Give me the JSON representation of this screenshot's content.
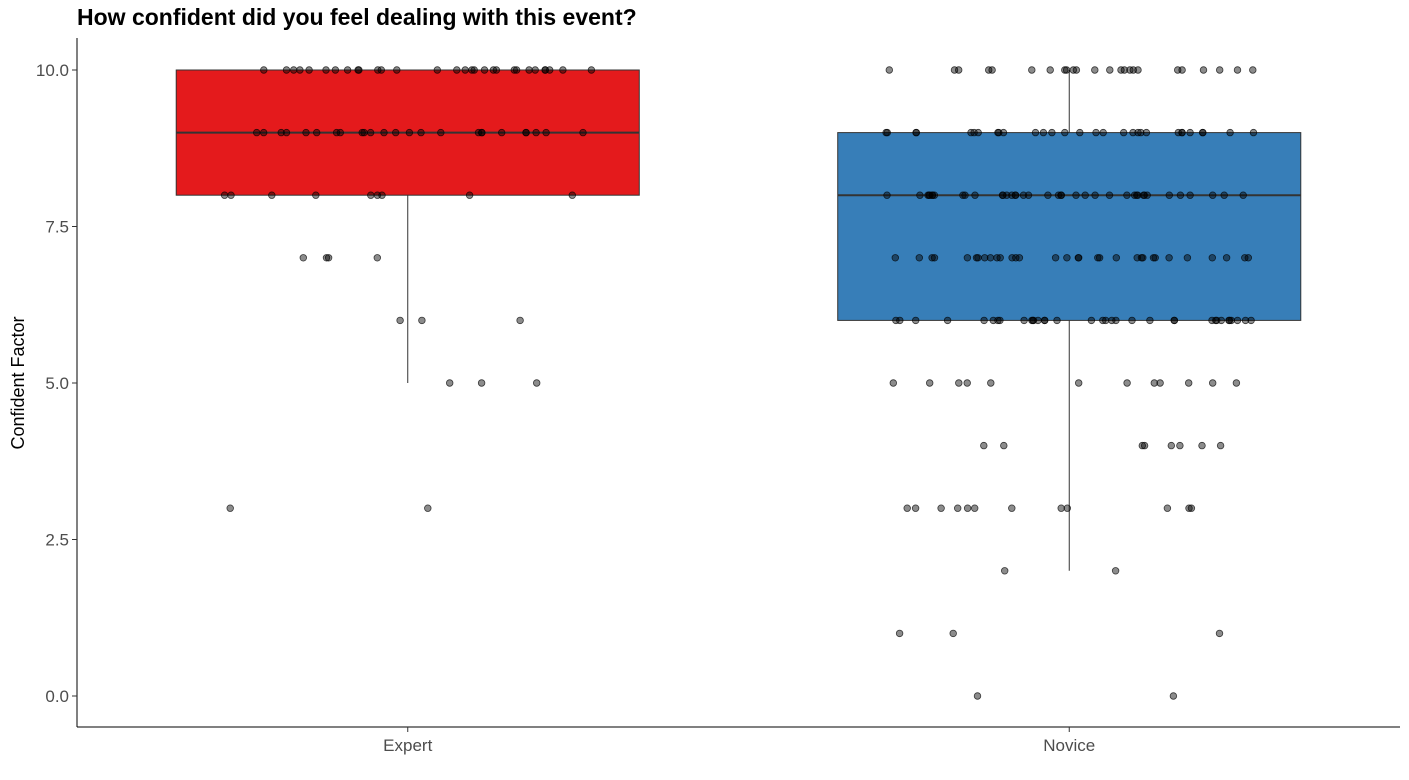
{
  "chart_data": {
    "type": "box",
    "title": "How confident did you feel dealing with this event?",
    "xlabel": "",
    "ylabel": "Confident Factor",
    "ylim": [
      -0.5,
      10.5
    ],
    "yticks": [
      0,
      2.5,
      5,
      7.5,
      10
    ],
    "ytick_labels": [
      "0.0",
      "2.5",
      "5.0",
      "7.5",
      "10.0"
    ],
    "categories": [
      "Expert",
      "Novice"
    ],
    "grid": false,
    "legend": "none",
    "point_color": "#000000",
    "boxes": [
      {
        "name": "Expert",
        "color": "#E41A1C",
        "whisker_low": 5,
        "q1": 8,
        "median": 9,
        "q3": 10,
        "whisker_high": 10,
        "points": [
          {
            "y": 10,
            "n": 30
          },
          {
            "y": 9,
            "n": 25
          },
          {
            "y": 8,
            "n": 9
          },
          {
            "y": 7,
            "n": 4
          },
          {
            "y": 6,
            "n": 3
          },
          {
            "y": 5,
            "n": 3
          },
          {
            "y": 3,
            "n": 2
          }
        ]
      },
      {
        "name": "Novice",
        "color": "#377EB8",
        "whisker_low": 2,
        "q1": 6,
        "median": 8,
        "q3": 9,
        "whisker_high": 10,
        "points": [
          {
            "y": 10,
            "n": 24
          },
          {
            "y": 9,
            "n": 30
          },
          {
            "y": 8,
            "n": 40
          },
          {
            "y": 7,
            "n": 32
          },
          {
            "y": 6,
            "n": 35
          },
          {
            "y": 5,
            "n": 12
          },
          {
            "y": 4,
            "n": 8
          },
          {
            "y": 3,
            "n": 12
          },
          {
            "y": 2,
            "n": 2
          },
          {
            "y": 1,
            "n": 3
          },
          {
            "y": 0,
            "n": 2
          }
        ]
      }
    ]
  }
}
